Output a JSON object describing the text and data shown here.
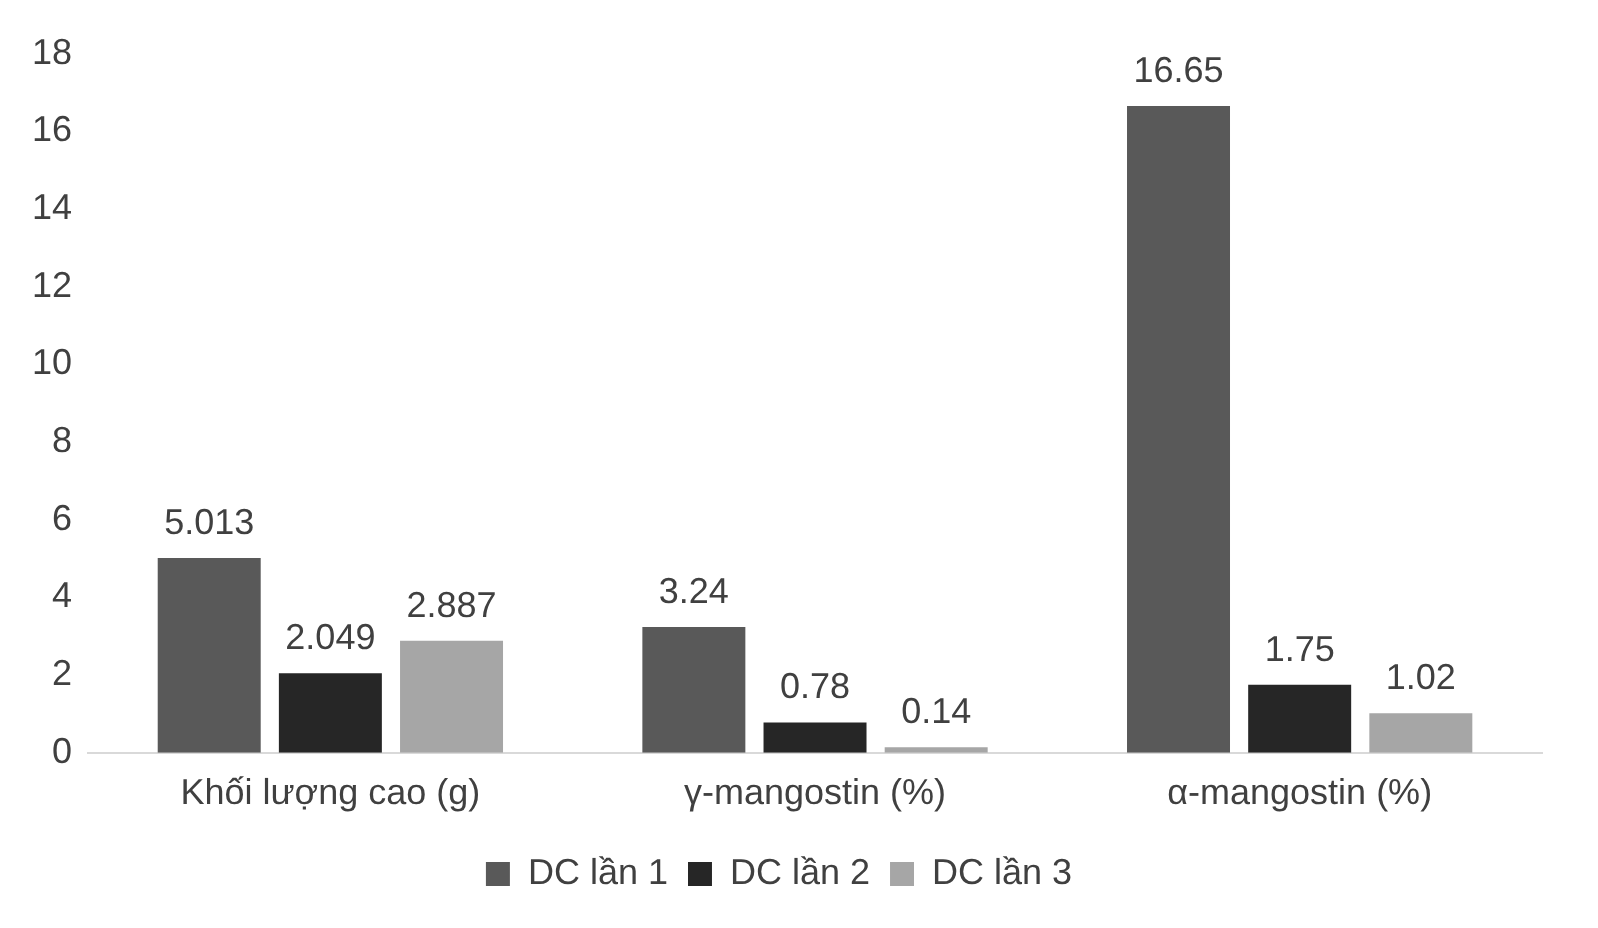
{
  "chart_data": {
    "type": "bar",
    "categories": [
      "Khối lượng cao (g)",
      "γ-mangostin (%)",
      "α-mangostin (%)"
    ],
    "series": [
      {
        "name": "DC lần 1",
        "color": "#595959",
        "values": [
          5.013,
          3.24,
          16.65
        ]
      },
      {
        "name": "DC lần 2",
        "color": "#262626",
        "values": [
          2.049,
          0.78,
          1.75
        ]
      },
      {
        "name": "DC lần 3",
        "color": "#a6a6a6",
        "values": [
          2.887,
          0.14,
          1.02
        ]
      }
    ],
    "ylim": [
      0,
      18
    ],
    "yticks": [
      0,
      2,
      4,
      6,
      8,
      10,
      12,
      14,
      16,
      18
    ],
    "grid": false,
    "legend": "bottom",
    "data_labels": true
  }
}
